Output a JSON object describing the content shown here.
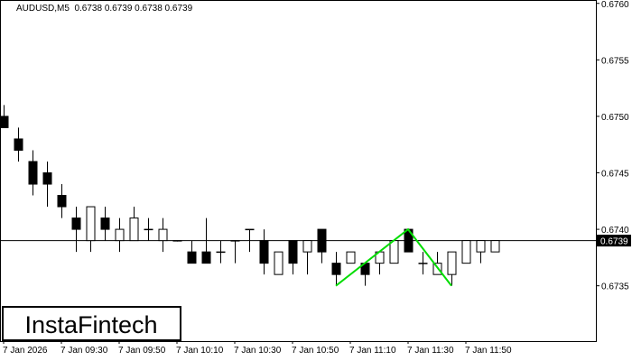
{
  "chart_data": {
    "type": "candlestick",
    "title": "AUDUSD,M5  0.6738 0.6739 0.6738 0.6739",
    "categories": [
      "7 Jan 2026",
      null,
      null,
      null,
      "7 Jan 09:30",
      null,
      null,
      null,
      "7 Jan 09:50",
      null,
      null,
      null,
      "7 Jan 10:10",
      null,
      null,
      null,
      "7 Jan 10:30",
      null,
      null,
      null,
      "7 Jan 10:50",
      null,
      null,
      null,
      "7 Jan 11:10",
      null,
      null,
      null,
      "7 Jan 11:30",
      null,
      null,
      null,
      "7 Jan 11:50",
      null,
      null
    ],
    "open": [
      0.675,
      0.6748,
      0.6746,
      0.6745,
      0.6743,
      0.6741,
      0.6739,
      0.6741,
      0.6739,
      0.6739,
      0.674,
      0.6739,
      0.6739,
      0.6738,
      0.6738,
      0.6738,
      0.6739,
      0.674,
      0.6739,
      0.6736,
      0.6739,
      0.6738,
      0.674,
      0.6737,
      0.6737,
      0.6737,
      0.6737,
      0.6737,
      0.674,
      0.6737,
      0.6736,
      0.6736,
      0.6737,
      0.6738,
      0.6738
    ],
    "high": [
      0.6751,
      0.6749,
      0.6747,
      0.6746,
      0.6744,
      0.6742,
      0.6742,
      0.6742,
      0.6741,
      0.6742,
      0.6741,
      0.6741,
      0.6739,
      0.6739,
      0.6741,
      0.6739,
      0.6739,
      0.674,
      0.674,
      0.6738,
      0.6739,
      0.6739,
      0.674,
      0.6738,
      0.6738,
      0.6737,
      0.6738,
      0.6739,
      0.674,
      0.6738,
      0.6738,
      0.6738,
      0.6739,
      0.6739,
      0.6739
    ],
    "low": [
      0.6749,
      0.6746,
      0.6743,
      0.6742,
      0.6741,
      0.6738,
      0.6738,
      0.6739,
      0.6738,
      0.6739,
      0.6739,
      0.6738,
      0.6739,
      0.6737,
      0.6737,
      0.6737,
      0.6737,
      0.6738,
      0.6736,
      0.6736,
      0.6736,
      0.6736,
      0.6737,
      0.6735,
      0.6737,
      0.6735,
      0.6736,
      0.6737,
      0.6738,
      0.6736,
      0.6736,
      0.6735,
      0.6737,
      0.6737,
      0.6738
    ],
    "close": [
      0.6749,
      0.6747,
      0.6744,
      0.6744,
      0.6742,
      0.674,
      0.6742,
      0.674,
      0.674,
      0.6741,
      0.674,
      0.674,
      0.6739,
      0.6737,
      0.6737,
      0.6738,
      0.6739,
      0.674,
      0.6737,
      0.6738,
      0.6737,
      0.6739,
      0.6738,
      0.6736,
      0.6738,
      0.6736,
      0.6738,
      0.6739,
      0.6738,
      0.6737,
      0.6737,
      0.6738,
      0.6739,
      0.6739,
      0.6739
    ],
    "up_color": "#ffffff",
    "down_color": "#000000",
    "ylim": [
      0.67301,
      0.67603
    ],
    "yticks": [
      0.6735,
      {
        "value": 0.674,
        "label": "0.6740"
      },
      0.6745,
      {
        "value": 0.675,
        "label": "0.6750"
      },
      0.6755,
      {
        "value": 0.676,
        "label": "0.6760"
      }
    ],
    "current_price": 0.6739,
    "pattern": {
      "color": "#00dd00",
      "x": [
        23,
        28,
        31
      ],
      "values": [
        0.6735,
        0.674,
        0.6735
      ]
    }
  },
  "watermark": "InstaFintech"
}
